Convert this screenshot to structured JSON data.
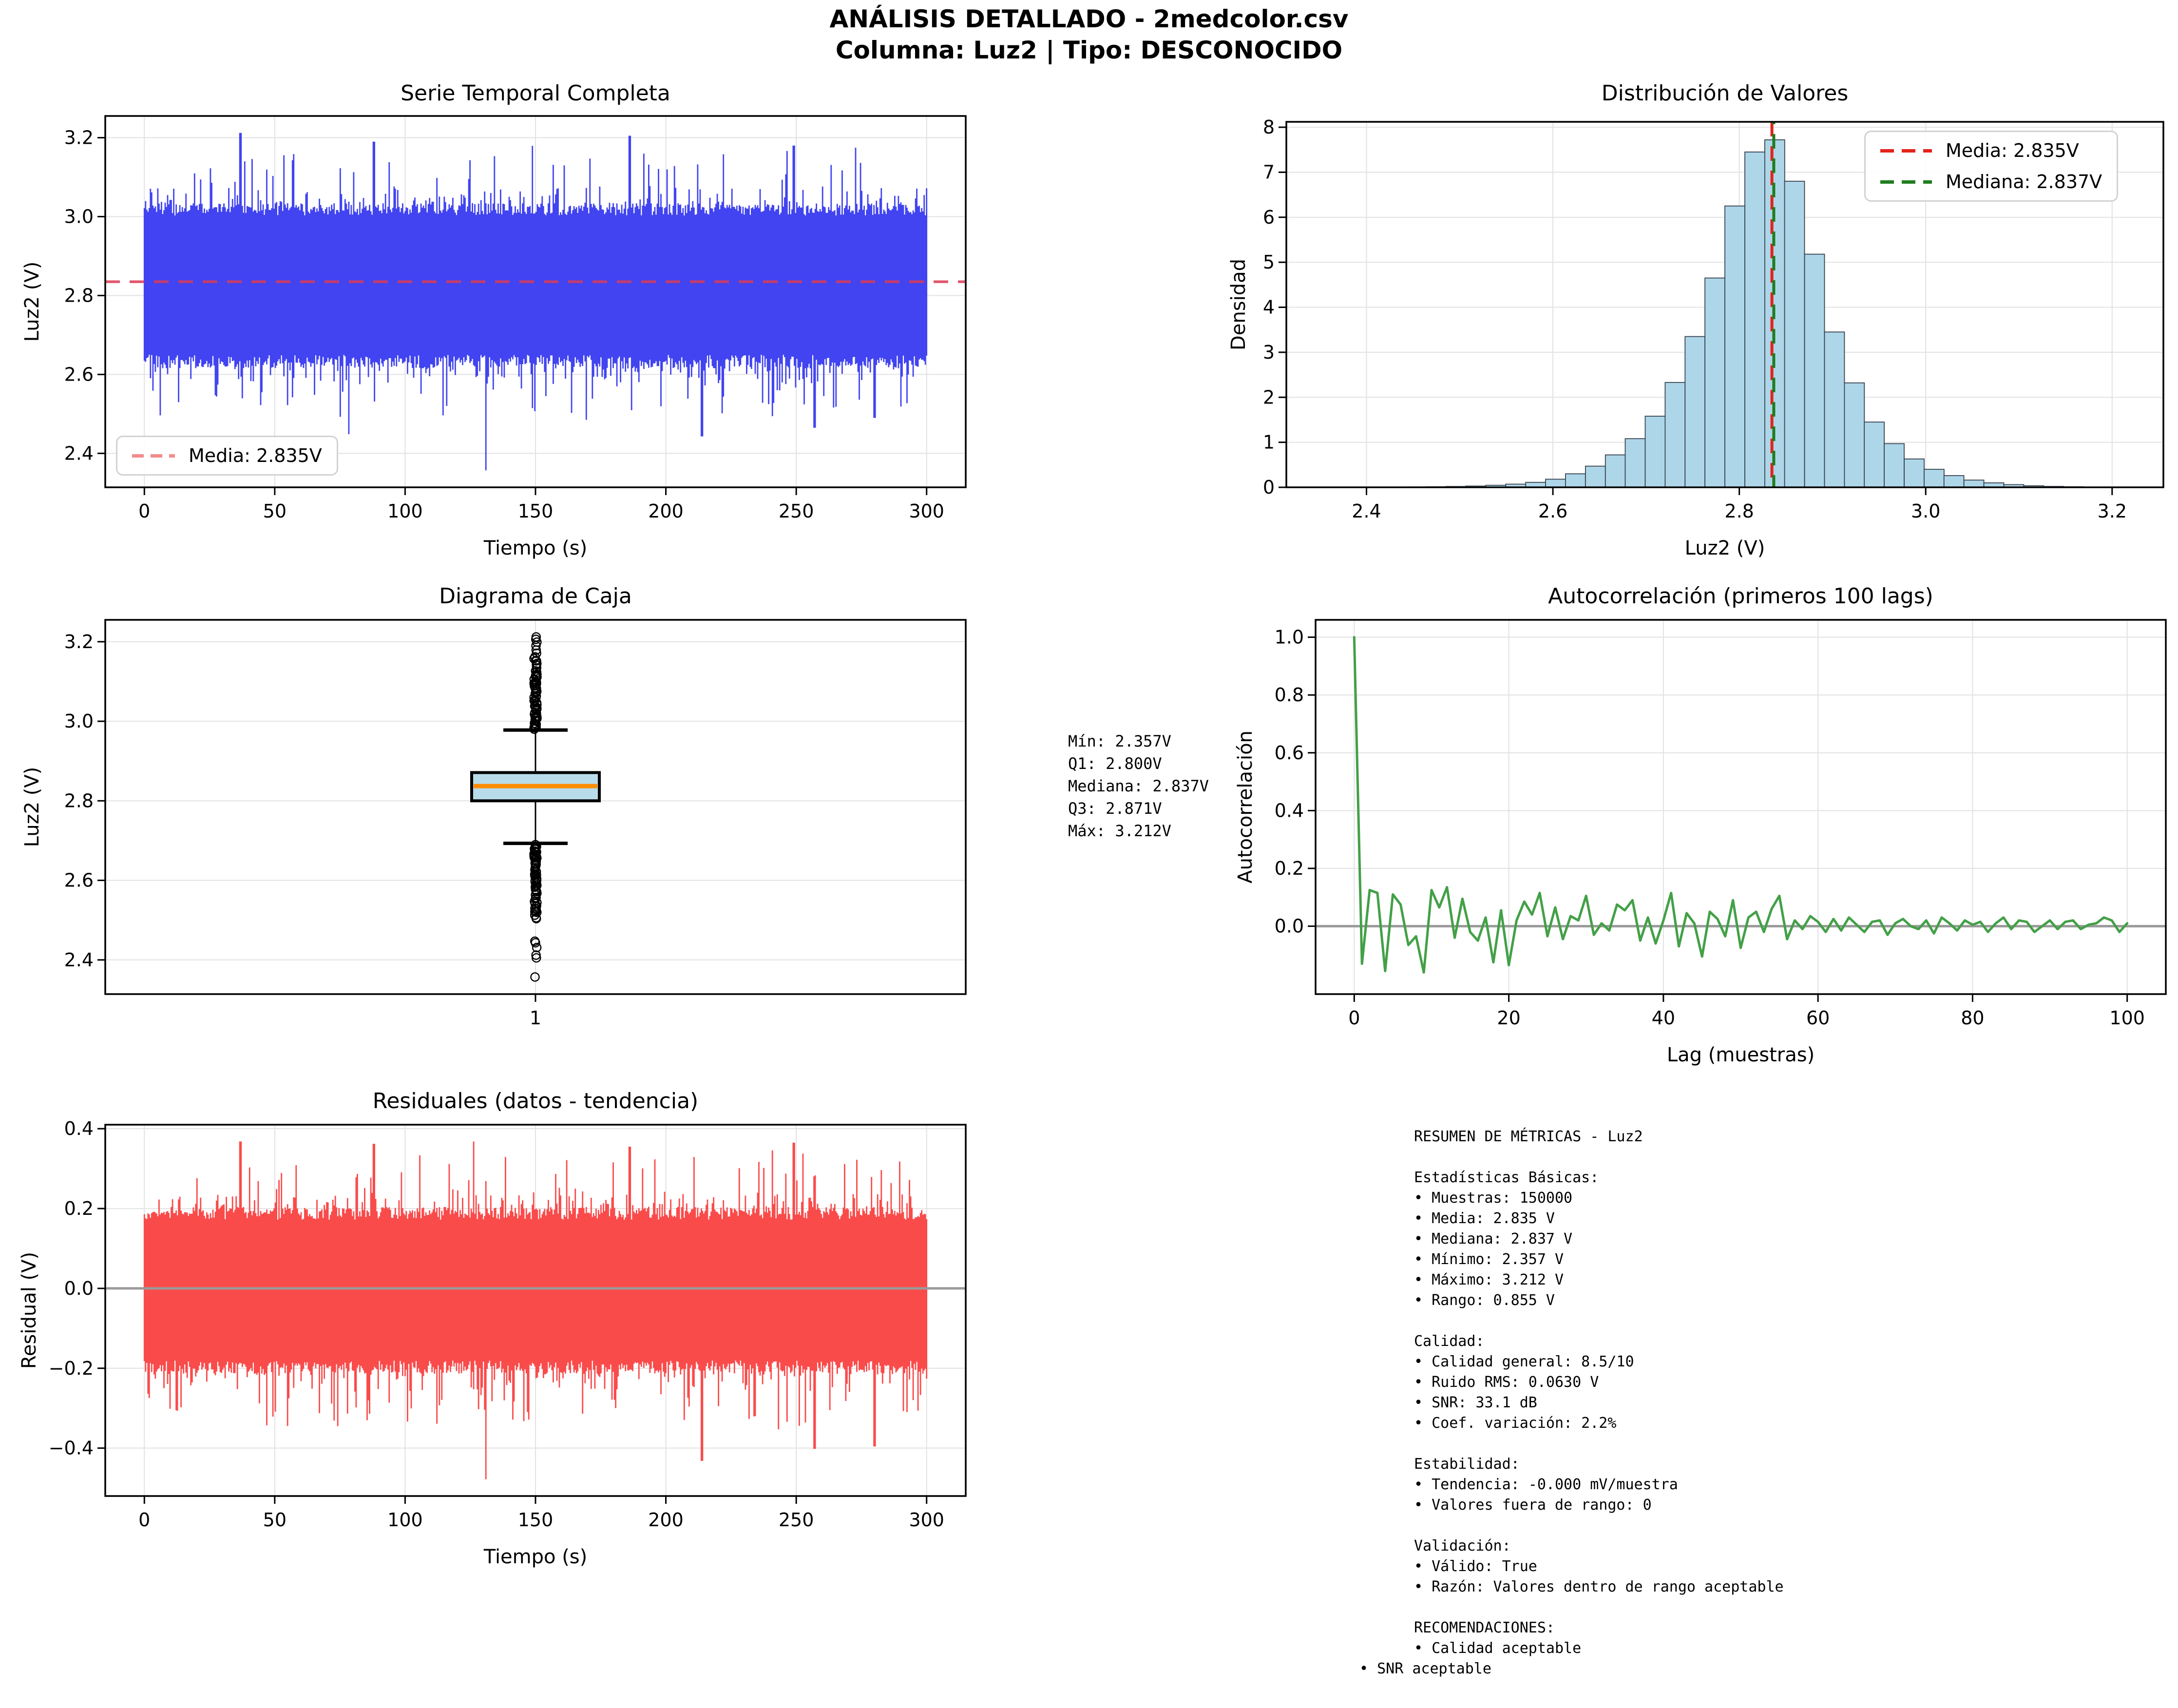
{
  "header": {
    "title": "ANÁLISIS DETALLADO - 2medcolor.csv",
    "subtitle": "Columna: Luz2 | Tipo: DESCONOCIDO"
  },
  "colors": {
    "ts_line": "#4144f0",
    "ts_mean_dash": "#dc3b56",
    "ts_legend_dash": "#f28b8b",
    "hist_fill": "#aed6e9",
    "hist_edge": "#39434e",
    "hist_mean": "#e3231c",
    "hist_median": "#1f7d1f",
    "box_fill": "#b8dcea",
    "box_median": "#ff8c00",
    "acf_line": "#43a047",
    "zero_line": "#9a9a9a",
    "res_line": "#fa4b4b",
    "grid": "#e2e2e2",
    "spine": "#000000"
  },
  "panels": {
    "ts": {
      "title": "Serie Temporal Completa",
      "xlabel": "Tiempo (s)",
      "ylabel": "Luz2 (V)",
      "legend": "Media: 2.835V"
    },
    "hist": {
      "title": "Distribución de Valores",
      "xlabel": "Luz2 (V)",
      "ylabel": "Densidad",
      "legend_mean": "Media: 2.835V",
      "legend_median": "Mediana: 2.837V"
    },
    "box": {
      "title": "Diagrama de Caja",
      "ylabel": "Luz2 (V)"
    },
    "acf": {
      "title": "Autocorrelación (primeros 100 lags)",
      "xlabel": "Lag (muestras)",
      "ylabel": "Autocorrelación"
    },
    "res": {
      "title": "Residuales (datos - tendencia)",
      "xlabel": "Tiempo (s)",
      "ylabel": "Residual (V)"
    }
  },
  "chart_data": [
    {
      "id": "ts",
      "type": "line-envelope",
      "title": "Serie Temporal Completa",
      "xlabel": "Tiempo (s)",
      "ylabel": "Luz2 (V)",
      "xlim": [
        -15,
        315
      ],
      "ylim": [
        2.314,
        3.255
      ],
      "xticks": [
        0,
        50,
        100,
        150,
        200,
        250,
        300
      ],
      "xtick_labels": [
        "0",
        "50",
        "100",
        "150",
        "200",
        "250",
        "300"
      ],
      "yticks": [
        2.4,
        2.6,
        2.8,
        3.0,
        3.2
      ],
      "ytick_labels": [
        "2.4",
        "2.6",
        "2.8",
        "3.0",
        "3.2"
      ],
      "x_range": [
        0,
        300
      ],
      "mean": 2.835,
      "legend": "Media: 2.835V",
      "series_summary": {
        "n_samples": 150000,
        "mean": 2.835,
        "median": 2.837,
        "min": 2.357,
        "max": 3.212,
        "noise_rms": 0.063,
        "solid_band": [
          2.62,
          3.03
        ]
      },
      "forced_extremes": [
        {
          "t": 37,
          "v": 3.212
        },
        {
          "t": 88,
          "v": 3.19
        },
        {
          "t": 131,
          "v": 2.357
        },
        {
          "t": 186,
          "v": 3.205
        },
        {
          "t": 214,
          "v": 2.443
        },
        {
          "t": 249,
          "v": 3.18
        },
        {
          "t": 257,
          "v": 2.465
        },
        {
          "t": 280,
          "v": 2.49
        }
      ]
    },
    {
      "id": "hist",
      "type": "bar",
      "title": "Distribución de Valores",
      "xlabel": "Luz2 (V)",
      "ylabel": "Densidad",
      "xlim": [
        2.314,
        3.255
      ],
      "ylim": [
        0,
        8.12
      ],
      "xticks": [
        2.4,
        2.6,
        2.8,
        3.0,
        3.2
      ],
      "xtick_labels": [
        "2.4",
        "2.6",
        "2.8",
        "3.0",
        "3.2"
      ],
      "yticks": [
        0,
        1,
        2,
        3,
        4,
        5,
        6,
        7,
        8
      ],
      "ytick_labels": [
        "0",
        "1",
        "2",
        "3",
        "4",
        "5",
        "6",
        "7",
        "8"
      ],
      "bin_width": 0.021375,
      "bin_centers": [
        2.3677,
        2.3891,
        2.4105,
        2.4318,
        2.4532,
        2.4746,
        2.496,
        2.5173,
        2.5387,
        2.5601,
        2.5815,
        2.6028,
        2.6242,
        2.6456,
        2.667,
        2.6883,
        2.7097,
        2.7311,
        2.7525,
        2.7738,
        2.7952,
        2.8166,
        2.838,
        2.8593,
        2.8807,
        2.9021,
        2.9235,
        2.9448,
        2.9662,
        2.9876,
        3.009,
        3.0303,
        3.0517,
        3.0731,
        3.0945,
        3.1158,
        3.1372,
        3.1586,
        3.18,
        3.2013
      ],
      "densities": [
        0.004,
        0.003,
        0.005,
        0.006,
        0.008,
        0.012,
        0.018,
        0.028,
        0.045,
        0.07,
        0.11,
        0.18,
        0.3,
        0.47,
        0.72,
        1.08,
        1.58,
        2.33,
        3.35,
        4.65,
        6.25,
        7.45,
        7.72,
        6.8,
        5.18,
        3.45,
        2.32,
        1.45,
        0.97,
        0.63,
        0.4,
        0.26,
        0.16,
        0.1,
        0.06,
        0.035,
        0.02,
        0.012,
        0.007,
        0.004
      ],
      "mean_line": {
        "value": 2.835,
        "label": "Media: 2.835V"
      },
      "median_line": {
        "value": 2.837,
        "label": "Mediana: 2.837V"
      }
    },
    {
      "id": "box",
      "type": "box",
      "title": "Diagrama de Caja",
      "ylabel": "Luz2 (V)",
      "xlim": [
        0.5,
        1.5
      ],
      "ylim": [
        2.314,
        3.255
      ],
      "xticks": [
        1
      ],
      "xtick_labels": [
        "1"
      ],
      "yticks": [
        2.4,
        2.6,
        2.8,
        3.0,
        3.2
      ],
      "ytick_labels": [
        "2.4",
        "2.6",
        "2.8",
        "3.0",
        "3.2"
      ],
      "stats": {
        "min": 2.357,
        "q1": 2.8,
        "median": 2.837,
        "q3": 2.871,
        "max": 3.212,
        "whisker_low": 2.693,
        "whisker_high": 2.978
      },
      "outliers": {
        "high_dense_range": [
          2.982,
          3.162
        ],
        "high_extreme": [
          3.171,
          3.179,
          3.19,
          3.199,
          3.206,
          3.212
        ],
        "low_dense_range": [
          2.502,
          2.688
        ],
        "low_extreme": [
          2.447,
          2.443,
          2.431,
          2.412,
          2.405,
          2.357
        ]
      }
    },
    {
      "id": "acf",
      "type": "line",
      "title": "Autocorrelación (primeros 100 lags)",
      "xlabel": "Lag (muestras)",
      "ylabel": "Autocorrelación",
      "xlim": [
        -5,
        105
      ],
      "ylim": [
        -0.235,
        1.06
      ],
      "xticks": [
        0,
        20,
        40,
        60,
        80,
        100
      ],
      "xtick_labels": [
        "0",
        "20",
        "40",
        "60",
        "80",
        "100"
      ],
      "yticks": [
        0.0,
        0.2,
        0.4,
        0.6,
        0.8,
        1.0
      ],
      "ytick_labels": [
        "0.0",
        "0.2",
        "0.4",
        "0.6",
        "0.8",
        "1.0"
      ],
      "values": [
        1.0,
        -0.13,
        0.125,
        0.115,
        -0.155,
        0.11,
        0.075,
        -0.065,
        -0.035,
        -0.16,
        0.125,
        0.065,
        0.135,
        -0.04,
        0.095,
        -0.02,
        -0.05,
        0.03,
        -0.125,
        0.055,
        -0.135,
        0.02,
        0.085,
        0.04,
        0.115,
        -0.035,
        0.065,
        -0.045,
        0.035,
        0.02,
        0.105,
        -0.03,
        0.01,
        -0.015,
        0.075,
        0.055,
        0.09,
        -0.05,
        0.03,
        -0.06,
        0.02,
        0.115,
        -0.07,
        0.045,
        0.01,
        -0.105,
        0.05,
        0.025,
        -0.035,
        0.09,
        -0.075,
        0.03,
        0.05,
        -0.02,
        0.06,
        0.105,
        -0.045,
        0.02,
        -0.01,
        0.035,
        0.015,
        -0.02,
        0.025,
        -0.015,
        0.03,
        0.005,
        -0.02,
        0.015,
        0.02,
        -0.03,
        0.01,
        0.025,
        0.0,
        -0.01,
        0.02,
        -0.025,
        0.03,
        0.01,
        -0.015,
        0.02,
        0.005,
        0.015,
        -0.02,
        0.01,
        0.03,
        -0.01,
        0.02,
        0.015,
        -0.02,
        0.0,
        0.02,
        -0.01,
        0.015,
        0.02,
        -0.01,
        0.005,
        0.01,
        0.03,
        0.02,
        -0.02,
        0.01
      ]
    },
    {
      "id": "res",
      "type": "line-envelope",
      "title": "Residuales (datos - tendencia)",
      "xlabel": "Tiempo (s)",
      "ylabel": "Residual (V)",
      "xlim": [
        -15,
        315
      ],
      "ylim": [
        -0.52,
        0.41
      ],
      "xticks": [
        0,
        50,
        100,
        150,
        200,
        250,
        300
      ],
      "xtick_labels": [
        "0",
        "50",
        "100",
        "150",
        "200",
        "250",
        "300"
      ],
      "yticks": [
        -0.4,
        -0.2,
        0.0,
        0.2,
        0.4
      ],
      "ytick_labels": [
        "−0.4",
        "−0.2",
        "0.0",
        "0.2",
        "0.4"
      ],
      "x_range": [
        0,
        300
      ],
      "mean": 0,
      "series_summary": {
        "noise_rms": 0.063,
        "min": -0.478,
        "max": 0.368,
        "solid_band": [
          -0.21,
          0.2
        ]
      },
      "forced_extremes": [
        {
          "t": 37,
          "v": 0.368
        },
        {
          "t": 88,
          "v": 0.362
        },
        {
          "t": 131,
          "v": -0.478
        },
        {
          "t": 186,
          "v": 0.355
        },
        {
          "t": 214,
          "v": -0.432
        },
        {
          "t": 249,
          "v": 0.365
        },
        {
          "t": 257,
          "v": -0.402
        },
        {
          "t": 280,
          "v": -0.396
        }
      ]
    }
  ],
  "stats_box": {
    "lines": [
      "Mín: 2.357V",
      "Q1: 2.800V",
      "Mediana: 2.837V",
      "Q3: 2.871V",
      "Máx: 3.212V"
    ]
  },
  "resumen": {
    "outdent_last": true,
    "lines": [
      "RESUMEN DE MÉTRICAS - Luz2",
      "",
      "Estadísticas Básicas:",
      "• Muestras: 150000",
      "• Media: 2.835 V",
      "• Mediana: 2.837 V",
      "• Mínimo: 2.357 V",
      "• Máximo: 3.212 V",
      "• Rango: 0.855 V",
      "",
      "Calidad:",
      "• Calidad general: 8.5/10",
      "• Ruido RMS: 0.0630 V",
      "• SNR: 33.1 dB",
      "• Coef. variación: 2.2%",
      "",
      "Estabilidad:",
      "• Tendencia: -0.000 mV/muestra",
      "• Valores fuera de rango: 0",
      "",
      "Validación:",
      "• Válido: True",
      "• Razón: Valores dentro de rango aceptable",
      "",
      "RECOMENDACIONES:",
      "• Calidad aceptable",
      "• SNR aceptable"
    ]
  }
}
